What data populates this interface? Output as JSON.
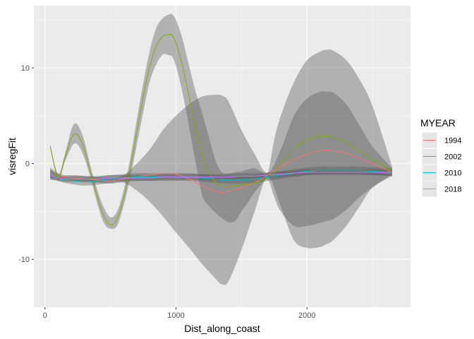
{
  "chart_data": {
    "type": "line",
    "title": "",
    "xlabel": "Dist_along_coast",
    "ylabel": "visregFit",
    "xlim": [
      -85,
      2790
    ],
    "ylim": [
      -15,
      16.5
    ],
    "x_ticks": [
      0,
      1000,
      2000
    ],
    "x_tick_labels": [
      "0",
      "1000",
      "2000"
    ],
    "y_ticks": [
      -10,
      0,
      10
    ],
    "y_tick_labels": [
      "-10",
      "0",
      "10"
    ],
    "grid": true,
    "legend": {
      "title": "MYEAR",
      "placement": "right"
    },
    "band_color": "#595959",
    "panel_background": "#ebebeb",
    "gridline_color": "#ffffff",
    "series": [
      {
        "name": "1994",
        "color": "#f8766d",
        "x": [
          40,
          100,
          150,
          230,
          300,
          400,
          500,
          600,
          700,
          800,
          900,
          1000,
          1100,
          1200,
          1300,
          1350,
          1400,
          1500,
          1600,
          1700,
          1800,
          1900,
          2000,
          2100,
          2150,
          2200,
          2300,
          2400,
          2500,
          2650
        ],
        "y": [
          -1.0,
          -1.3,
          -1.4,
          -1.5,
          -1.6,
          -1.7,
          -1.8,
          -1.6,
          -1.4,
          -1.2,
          -1.0,
          -1.1,
          -1.6,
          -2.3,
          -2.9,
          -3.0,
          -2.9,
          -2.5,
          -2.0,
          -1.2,
          -0.3,
          0.4,
          1.0,
          1.35,
          1.4,
          1.35,
          1.1,
          0.6,
          0.0,
          -0.9
        ],
        "upper": [
          -0.4,
          -1.0,
          -1.2,
          -1.2,
          -1.3,
          -1.4,
          -1.5,
          -1.2,
          0.0,
          1.5,
          3.5,
          5.0,
          6.2,
          7.0,
          7.2,
          7.1,
          6.5,
          3.5,
          1.0,
          -1.0,
          1.5,
          5.0,
          6.8,
          7.5,
          7.5,
          7.4,
          6.2,
          4.0,
          1.8,
          -0.5
        ],
        "lower": [
          -1.5,
          -1.6,
          -1.7,
          -1.8,
          -1.9,
          -2.0,
          -2.1,
          -2.0,
          -2.8,
          -4.0,
          -5.5,
          -7.2,
          -8.8,
          -10.5,
          -12.0,
          -12.6,
          -12.3,
          -9.0,
          -5.0,
          -1.4,
          -4.5,
          -8.0,
          -8.8,
          -8.7,
          -8.4,
          -8.0,
          -6.5,
          -4.5,
          -2.5,
          -1.3
        ]
      },
      {
        "name": "2002",
        "color": "#7cae00",
        "x": [
          40,
          100,
          150,
          200,
          230,
          260,
          300,
          350,
          400,
          450,
          500,
          550,
          600,
          650,
          700,
          750,
          800,
          850,
          900,
          950,
          970,
          1000,
          1050,
          1100,
          1150,
          1200,
          1250,
          1300,
          1350,
          1400,
          1450,
          1500,
          1550,
          1600,
          1650,
          1700,
          1750,
          1800,
          1900,
          2000,
          2100,
          2150,
          2200,
          2300,
          2400,
          2500,
          2650
        ],
        "y": [
          1.8,
          -1.4,
          0.5,
          2.6,
          3.1,
          2.8,
          1.5,
          -1.0,
          -3.5,
          -5.5,
          -6.4,
          -5.8,
          -3.6,
          -0.5,
          3.2,
          7.0,
          10.2,
          12.3,
          13.3,
          13.5,
          13.4,
          12.6,
          10.2,
          7.0,
          3.8,
          1.0,
          -0.8,
          -1.9,
          -2.3,
          -2.4,
          -2.3,
          -2.2,
          -2.1,
          -2.0,
          -1.8,
          -1.5,
          -1.0,
          0.0,
          1.5,
          2.5,
          2.9,
          2.9,
          2.8,
          2.2,
          1.4,
          0.5,
          -0.7
        ],
        "upper": [
          2.0,
          -1.1,
          0.9,
          3.5,
          4.2,
          3.8,
          2.4,
          -0.4,
          -2.8,
          -4.6,
          -5.6,
          -5.0,
          -2.8,
          0.5,
          4.5,
          8.4,
          11.8,
          14.2,
          15.2,
          15.6,
          15.6,
          15.0,
          13.0,
          10.2,
          7.5,
          5.3,
          2.8,
          0.4,
          -0.9,
          -1.0,
          -0.9,
          -0.8,
          -0.6,
          -0.5,
          -0.8,
          -1.0,
          2.5,
          5.0,
          8.5,
          10.8,
          11.7,
          11.9,
          11.8,
          10.8,
          8.8,
          6.0,
          -0.3
        ],
        "lower": [
          1.6,
          -1.7,
          0.1,
          1.7,
          2.1,
          1.8,
          0.6,
          -1.6,
          -4.2,
          -6.2,
          -6.8,
          -6.5,
          -4.4,
          -1.5,
          1.9,
          5.4,
          8.6,
          10.4,
          11.4,
          11.3,
          11.2,
          10.2,
          7.4,
          3.8,
          0.1,
          -3.3,
          -4.4,
          -5.1,
          -5.7,
          -6.1,
          -6.0,
          -5.0,
          -4.0,
          -3.0,
          -2.2,
          -1.6,
          -3.5,
          -5.0,
          -6.5,
          -6.5,
          -6.2,
          -6.0,
          -5.8,
          -4.8,
          -3.5,
          -2.5,
          -1.1
        ]
      },
      {
        "name": "2010",
        "color": "#00bfc4",
        "x": [
          40,
          100,
          150,
          230,
          300,
          400,
          500,
          600,
          700,
          800,
          900,
          1000,
          1100,
          1200,
          1300,
          1400,
          1500,
          1600,
          1700,
          1800,
          1900,
          2000,
          2100,
          2200,
          2300,
          2400,
          2500,
          2650
        ],
        "y": [
          -1.1,
          -1.5,
          -1.7,
          -1.8,
          -1.9,
          -1.8,
          -1.6,
          -1.5,
          -1.4,
          -1.4,
          -1.4,
          -1.4,
          -1.4,
          -1.5,
          -1.6,
          -1.7,
          -1.7,
          -1.6,
          -1.4,
          -1.2,
          -1.0,
          -0.8,
          -0.7,
          -0.7,
          -0.7,
          -0.7,
          -0.8,
          -0.9
        ],
        "upper": [
          -0.6,
          -1.2,
          -1.4,
          -1.4,
          -1.5,
          -1.4,
          -1.2,
          -1.1,
          -1.0,
          -1.0,
          -1.0,
          -1.0,
          -1.0,
          -1.1,
          -1.2,
          -1.3,
          -1.3,
          -1.2,
          -1.0,
          -0.8,
          -0.6,
          -0.4,
          -0.3,
          -0.3,
          -0.3,
          -0.3,
          -0.4,
          -0.5
        ],
        "lower": [
          -1.6,
          -1.8,
          -2.0,
          -2.2,
          -2.3,
          -2.2,
          -2.0,
          -1.9,
          -1.8,
          -1.8,
          -1.8,
          -1.8,
          -1.8,
          -1.9,
          -2.0,
          -2.1,
          -2.1,
          -2.0,
          -1.8,
          -1.6,
          -1.4,
          -1.2,
          -1.1,
          -1.1,
          -1.1,
          -1.1,
          -1.2,
          -1.3
        ]
      },
      {
        "name": "2018",
        "color": "#c77cff",
        "x": [
          40,
          100,
          150,
          230,
          300,
          400,
          500,
          600,
          700,
          800,
          900,
          1000,
          1100,
          1200,
          1300,
          1400,
          1500,
          1600,
          1700,
          1800,
          1900,
          2000,
          2100,
          2200,
          2300,
          2400,
          2500,
          2650
        ],
        "y": [
          -1.2,
          -1.5,
          -1.6,
          -1.6,
          -1.6,
          -1.6,
          -1.5,
          -1.5,
          -1.5,
          -1.5,
          -1.4,
          -1.4,
          -1.4,
          -1.4,
          -1.4,
          -1.4,
          -1.3,
          -1.3,
          -1.2,
          -1.1,
          -1.0,
          -0.9,
          -0.9,
          -0.9,
          -0.9,
          -0.9,
          -0.9,
          -1.0
        ],
        "upper": [
          -0.7,
          -1.2,
          -1.3,
          -1.3,
          -1.3,
          -1.3,
          -1.2,
          -1.2,
          -1.2,
          -1.2,
          -1.1,
          -1.1,
          -1.1,
          -1.1,
          -1.1,
          -1.1,
          -1.0,
          -1.0,
          -0.9,
          -0.8,
          -0.7,
          -0.6,
          -0.6,
          -0.6,
          -0.6,
          -0.6,
          -0.6,
          -0.7
        ],
        "lower": [
          -1.7,
          -1.8,
          -1.9,
          -1.9,
          -1.9,
          -1.9,
          -1.8,
          -1.8,
          -1.8,
          -1.8,
          -1.7,
          -1.7,
          -1.7,
          -1.7,
          -1.7,
          -1.7,
          -1.6,
          -1.6,
          -1.5,
          -1.4,
          -1.3,
          -1.2,
          -1.2,
          -1.2,
          -1.2,
          -1.2,
          -1.2,
          -1.3
        ]
      }
    ]
  }
}
